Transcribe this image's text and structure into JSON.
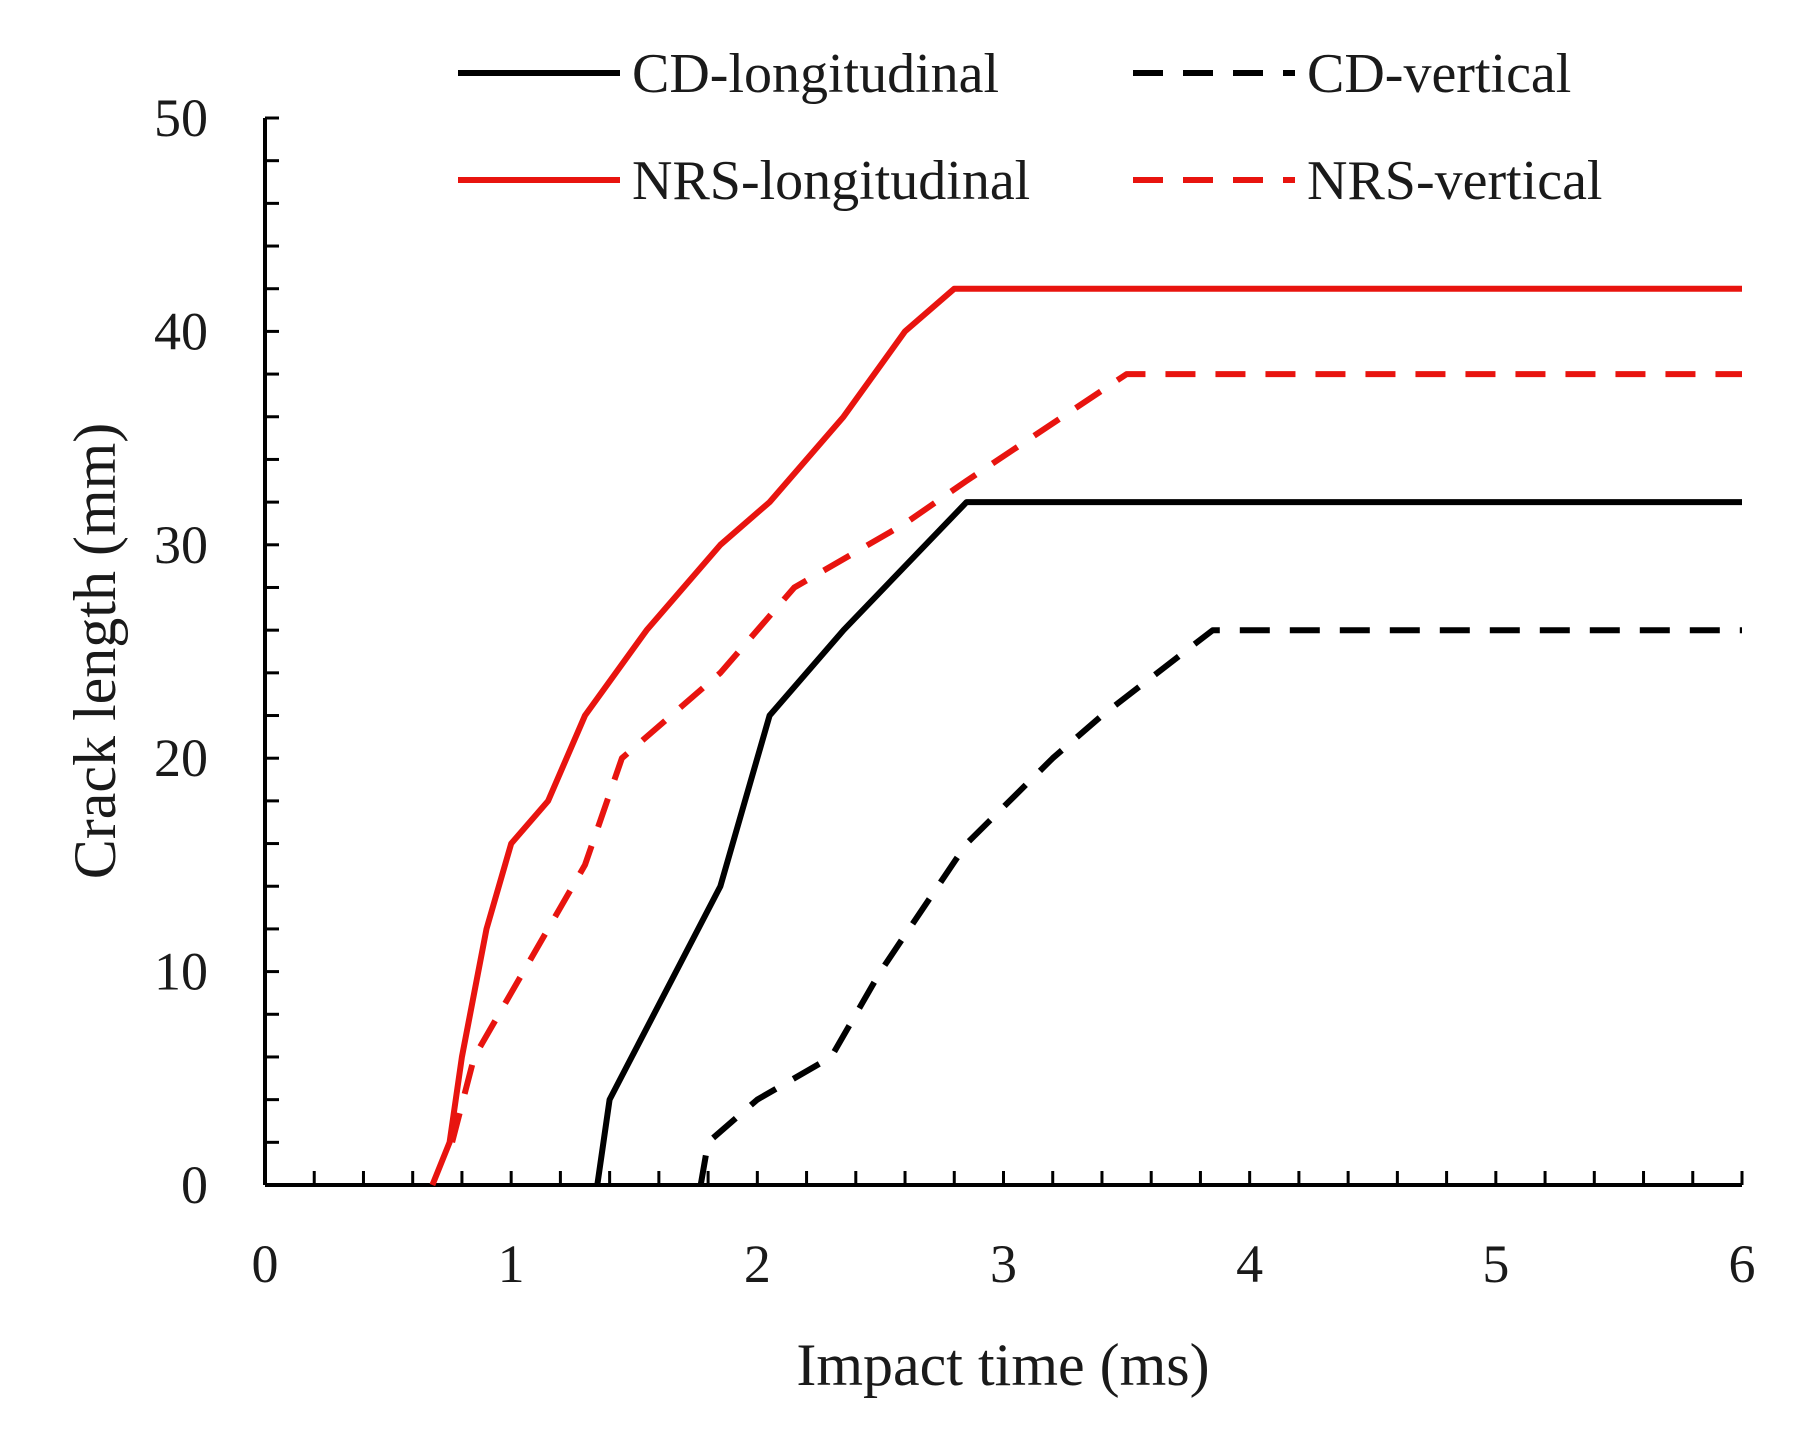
{
  "chart_data": {
    "type": "line",
    "title": "",
    "xlabel": "Impact time (ms)",
    "ylabel": "Crack length (mm)",
    "xlim": [
      0,
      6
    ],
    "ylim": [
      0,
      50
    ],
    "xticks": [
      0,
      1,
      2,
      3,
      4,
      5,
      6
    ],
    "yticks": [
      0,
      10,
      20,
      30,
      40,
      50
    ],
    "x_minor_step": 0.2,
    "y_minor_step": 2,
    "grid": false,
    "legend_position": "top",
    "series": [
      {
        "name": "CD-longitudinal",
        "color": "#000000",
        "style": "solid",
        "points": [
          [
            1.35,
            0
          ],
          [
            1.4,
            4
          ],
          [
            1.85,
            14
          ],
          [
            2.05,
            22
          ],
          [
            2.35,
            26
          ],
          [
            2.85,
            32
          ],
          [
            6.0,
            32
          ]
        ]
      },
      {
        "name": "CD-vertical",
        "color": "#000000",
        "style": "dashed",
        "points": [
          [
            1.77,
            0
          ],
          [
            1.8,
            2
          ],
          [
            2.0,
            4
          ],
          [
            2.3,
            6
          ],
          [
            2.5,
            10
          ],
          [
            2.85,
            16
          ],
          [
            3.2,
            20
          ],
          [
            3.4,
            22
          ],
          [
            3.85,
            26
          ],
          [
            6.0,
            26
          ]
        ]
      },
      {
        "name": "NRS-longitudinal",
        "color": "#e8140f",
        "style": "solid",
        "points": [
          [
            0.68,
            0
          ],
          [
            0.75,
            2
          ],
          [
            0.8,
            6
          ],
          [
            0.9,
            12
          ],
          [
            1.0,
            16
          ],
          [
            1.15,
            18
          ],
          [
            1.3,
            22
          ],
          [
            1.55,
            26
          ],
          [
            1.85,
            30
          ],
          [
            2.05,
            32
          ],
          [
            2.35,
            36
          ],
          [
            2.6,
            40
          ],
          [
            2.8,
            42
          ],
          [
            6.0,
            42
          ]
        ]
      },
      {
        "name": "NRS-vertical",
        "color": "#e8140f",
        "style": "dashed",
        "points": [
          [
            0.76,
            2
          ],
          [
            0.85,
            6
          ],
          [
            1.0,
            9
          ],
          [
            1.3,
            15
          ],
          [
            1.45,
            20
          ],
          [
            1.85,
            24
          ],
          [
            2.15,
            28
          ],
          [
            2.6,
            31
          ],
          [
            2.85,
            33
          ],
          [
            3.5,
            38
          ],
          [
            6.0,
            38
          ]
        ]
      }
    ]
  }
}
